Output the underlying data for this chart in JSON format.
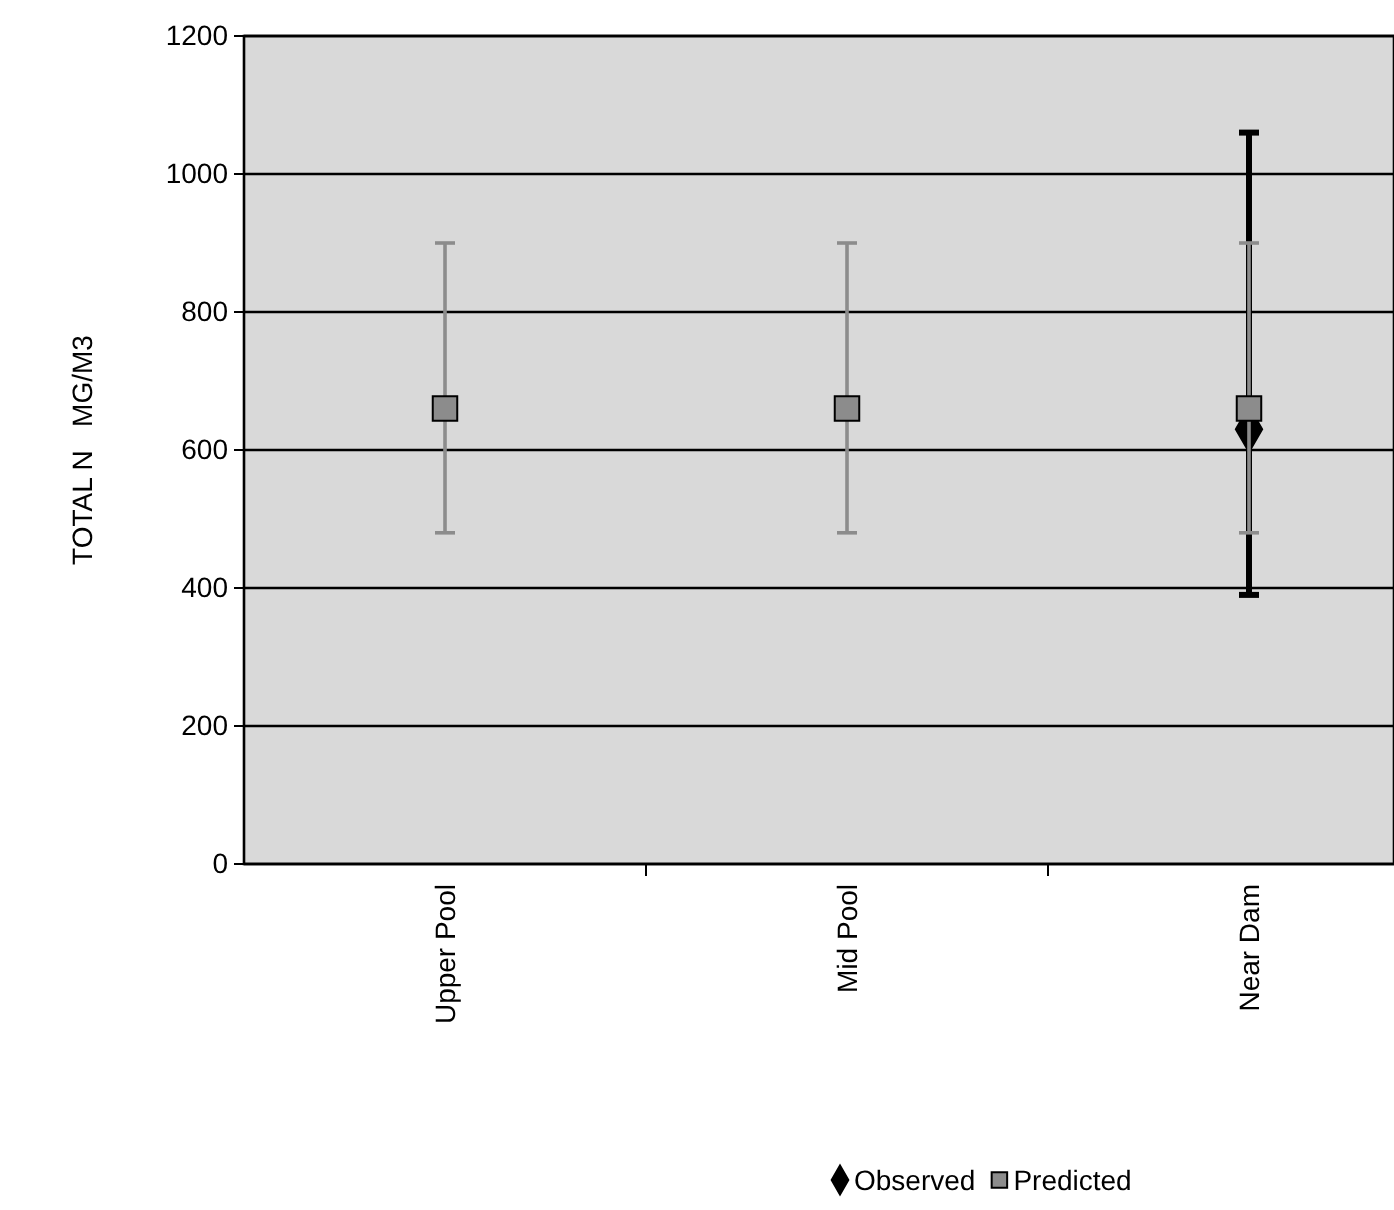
{
  "chart_data": {
    "type": "scatter",
    "ylabel": "TOTAL N   MG/M3",
    "categories": [
      "Upper Pool",
      "Mid Pool",
      "Near Dam"
    ],
    "ylim": [
      0,
      1200
    ],
    "yticks": [
      0,
      200,
      400,
      600,
      800,
      1000,
      1200
    ],
    "grid": "y",
    "legend": "bottom",
    "series": [
      {
        "name": "Observed",
        "color": "#000000",
        "marker": "diamond",
        "values": [
          null,
          null,
          630
        ],
        "errors": [
          null,
          null,
          [
            390,
            1060
          ]
        ]
      },
      {
        "name": "Predicted",
        "color": "#8c8c8c",
        "marker": "square",
        "values": [
          660,
          660,
          660
        ],
        "errors": [
          [
            480,
            900
          ],
          [
            480,
            900
          ],
          [
            480,
            900
          ]
        ]
      }
    ]
  }
}
